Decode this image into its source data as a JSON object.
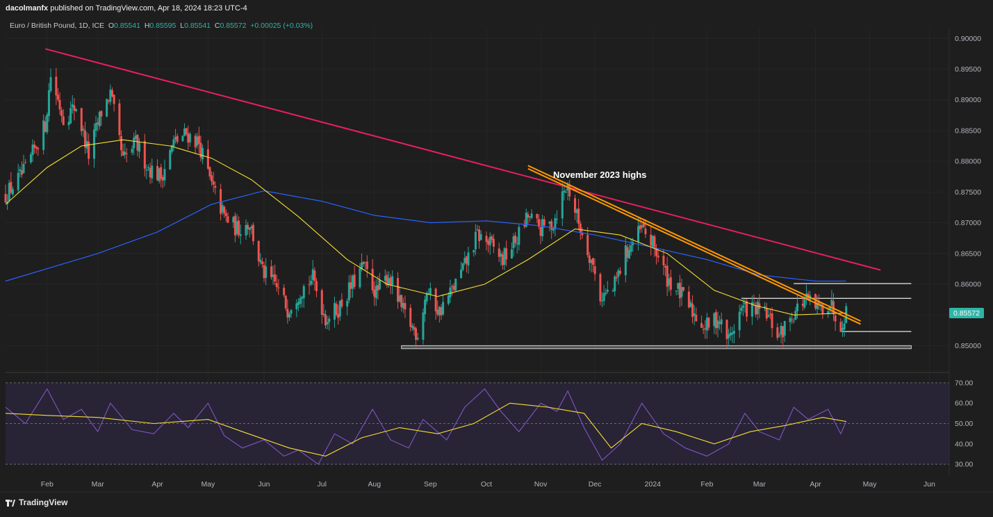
{
  "header": {
    "publisher": "dacolmanfx",
    "published_text": "published on TradingView.com, Apr 18, 2024 18:23 UTC-4"
  },
  "symbol": {
    "name": "Euro / British Pound, 1D, ICE",
    "open_label": "O",
    "open": "0.85541",
    "high_label": "H",
    "high": "0.85595",
    "low_label": "L",
    "low": "0.85541",
    "close_label": "C",
    "close": "0.85572",
    "change": "+0.00025 (+0.03%)"
  },
  "last_price_label": "0.85572",
  "annotation": "November 2023 highs",
  "footer": {
    "brand": "TradingView"
  },
  "colors": {
    "background": "#1e1e1e",
    "up_candle": "#26a69a",
    "down_candle": "#ef5350",
    "sma_fast": "#f5e132",
    "sma_slow": "#2962ff",
    "long_trendline": "#e91e63",
    "channel": "#ff9800",
    "rsi_line": "#7e57c2",
    "rsi_band": "#2a2438"
  },
  "chart_data": [
    {
      "type": "candlestick",
      "instrument": "EUR/GBP",
      "timeframe": "1D",
      "x_tick_labels": [
        "Feb",
        "Mar",
        "Apr",
        "May",
        "Jun",
        "Jul",
        "Aug",
        "Sep",
        "Oct",
        "Nov",
        "Dec",
        "2024",
        "Feb",
        "Mar",
        "Apr",
        "May",
        "Jun"
      ],
      "y_tick_labels": [
        "0.90000",
        "0.89500",
        "0.89000",
        "0.88500",
        "0.88000",
        "0.87500",
        "0.87000",
        "0.86500",
        "0.86000",
        "0.85500",
        "0.85000"
      ],
      "ylim": [
        0.8488,
        0.9015
      ],
      "last_close": 0.85572,
      "close_path": [
        {
          "date": "2023-01-09",
          "close": 0.8745
        },
        {
          "date": "2023-01-20",
          "close": 0.8785
        },
        {
          "date": "2023-01-31",
          "close": 0.886
        },
        {
          "date": "2023-02-03",
          "close": 0.894
        },
        {
          "date": "2023-02-10",
          "close": 0.887
        },
        {
          "date": "2023-02-17",
          "close": 0.889
        },
        {
          "date": "2023-02-24",
          "close": 0.881
        },
        {
          "date": "2023-03-03",
          "close": 0.888
        },
        {
          "date": "2023-03-08",
          "close": 0.891
        },
        {
          "date": "2023-03-15",
          "close": 0.88
        },
        {
          "date": "2023-03-22",
          "close": 0.883
        },
        {
          "date": "2023-03-29",
          "close": 0.879
        },
        {
          "date": "2023-04-05",
          "close": 0.8775
        },
        {
          "date": "2023-04-12",
          "close": 0.883
        },
        {
          "date": "2023-04-19",
          "close": 0.8845
        },
        {
          "date": "2023-04-26",
          "close": 0.883
        },
        {
          "date": "2023-05-03",
          "close": 0.876
        },
        {
          "date": "2023-05-10",
          "close": 0.871
        },
        {
          "date": "2023-05-17",
          "close": 0.869
        },
        {
          "date": "2023-05-24",
          "close": 0.87
        },
        {
          "date": "2023-05-31",
          "close": 0.862
        },
        {
          "date": "2023-06-07",
          "close": 0.86
        },
        {
          "date": "2023-06-14",
          "close": 0.856
        },
        {
          "date": "2023-06-21",
          "close": 0.859
        },
        {
          "date": "2023-06-28",
          "close": 0.861
        },
        {
          "date": "2023-07-05",
          "close": 0.8545
        },
        {
          "date": "2023-07-12",
          "close": 0.856
        },
        {
          "date": "2023-07-19",
          "close": 0.8595
        },
        {
          "date": "2023-07-26",
          "close": 0.863
        },
        {
          "date": "2023-08-02",
          "close": 0.8585
        },
        {
          "date": "2023-08-09",
          "close": 0.8615
        },
        {
          "date": "2023-08-16",
          "close": 0.856
        },
        {
          "date": "2023-08-23",
          "close": 0.8525
        },
        {
          "date": "2023-08-25",
          "close": 0.852
        },
        {
          "date": "2023-08-30",
          "close": 0.859
        },
        {
          "date": "2023-09-06",
          "close": 0.8555
        },
        {
          "date": "2023-09-13",
          "close": 0.859
        },
        {
          "date": "2023-09-20",
          "close": 0.863
        },
        {
          "date": "2023-09-27",
          "close": 0.868
        },
        {
          "date": "2023-10-04",
          "close": 0.8665
        },
        {
          "date": "2023-10-11",
          "close": 0.864
        },
        {
          "date": "2023-10-18",
          "close": 0.867
        },
        {
          "date": "2023-10-25",
          "close": 0.871
        },
        {
          "date": "2023-11-01",
          "close": 0.869
        },
        {
          "date": "2023-11-08",
          "close": 0.87
        },
        {
          "date": "2023-11-13",
          "close": 0.8745
        },
        {
          "date": "2023-11-16",
          "close": 0.876
        },
        {
          "date": "2023-11-22",
          "close": 0.87
        },
        {
          "date": "2023-11-29",
          "close": 0.864
        },
        {
          "date": "2023-12-04",
          "close": 0.858
        },
        {
          "date": "2023-12-11",
          "close": 0.859
        },
        {
          "date": "2023-12-18",
          "close": 0.865
        },
        {
          "date": "2023-12-27",
          "close": 0.869
        },
        {
          "date": "2024-01-03",
          "close": 0.866
        },
        {
          "date": "2024-01-10",
          "close": 0.861
        },
        {
          "date": "2024-01-17",
          "close": 0.8585
        },
        {
          "date": "2024-01-24",
          "close": 0.8555
        },
        {
          "date": "2024-01-31",
          "close": 0.853
        },
        {
          "date": "2024-02-07",
          "close": 0.8545
        },
        {
          "date": "2024-02-13",
          "close": 0.851
        },
        {
          "date": "2024-02-20",
          "close": 0.856
        },
        {
          "date": "2024-02-27",
          "close": 0.856
        },
        {
          "date": "2024-03-05",
          "close": 0.855
        },
        {
          "date": "2024-03-12",
          "close": 0.8515
        },
        {
          "date": "2024-03-19",
          "close": 0.855
        },
        {
          "date": "2024-03-26",
          "close": 0.8575
        },
        {
          "date": "2024-04-02",
          "close": 0.856
        },
        {
          "date": "2024-04-09",
          "close": 0.857
        },
        {
          "date": "2024-04-15",
          "close": 0.8535
        },
        {
          "date": "2024-04-18",
          "close": 0.8557
        }
      ],
      "horizontal_levels": [
        0.8601,
        0.8577,
        0.8523,
        0.85,
        0.8495
      ],
      "series": [
        {
          "role": "long-term descending trendline",
          "from": {
            "date": "2023-01-31",
            "value": 0.8983
          },
          "to": {
            "date": "2024-05-07",
            "value": 0.8623
          }
        },
        {
          "role": "descending channel upper line",
          "from": {
            "date": "2023-10-25",
            "value": 0.8793
          },
          "to": {
            "date": "2024-04-26",
            "value": 0.854
          }
        },
        {
          "role": "descending channel lower line",
          "from": {
            "date": "2023-10-25",
            "value": 0.8788
          },
          "to": {
            "date": "2024-04-26",
            "value": 0.8535
          }
        },
        {
          "role": "200-day moving average",
          "points": [
            [
              "2023-01-09",
              0.8605
            ],
            [
              "2023-03-01",
              0.865
            ],
            [
              "2023-04-03",
              0.8685
            ],
            [
              "2023-05-03",
              0.873
            ],
            [
              "2023-06-01",
              0.8752
            ],
            [
              "2023-07-03",
              0.8735
            ],
            [
              "2023-08-01",
              0.8712
            ],
            [
              "2023-09-01",
              0.87
            ],
            [
              "2023-10-02",
              0.8703
            ],
            [
              "2023-11-01",
              0.8695
            ],
            [
              "2023-12-01",
              0.868
            ],
            [
              "2024-01-02",
              0.866
            ],
            [
              "2024-02-01",
              0.864
            ],
            [
              "2024-03-01",
              0.8615
            ],
            [
              "2024-04-01",
              0.8605
            ],
            [
              "2024-04-18",
              0.8605
            ]
          ]
        },
        {
          "role": "50-day moving average",
          "points": [
            [
              "2023-01-09",
              0.873
            ],
            [
              "2023-02-01",
              0.879
            ],
            [
              "2023-02-20",
              0.8825
            ],
            [
              "2023-03-15",
              0.8835
            ],
            [
              "2023-04-10",
              0.8825
            ],
            [
              "2023-05-03",
              0.8805
            ],
            [
              "2023-05-25",
              0.877
            ],
            [
              "2023-06-20",
              0.871
            ],
            [
              "2023-07-17",
              0.864
            ],
            [
              "2023-08-08",
              0.86
            ],
            [
              "2023-09-05",
              0.858
            ],
            [
              "2023-10-01",
              0.86
            ],
            [
              "2023-10-25",
              0.864
            ],
            [
              "2023-11-20",
              0.869
            ],
            [
              "2023-12-15",
              0.868
            ],
            [
              "2024-01-10",
              0.865
            ],
            [
              "2024-02-05",
              0.859
            ],
            [
              "2024-02-28",
              0.8565
            ],
            [
              "2024-03-20",
              0.855
            ],
            [
              "2024-04-18",
              0.8553
            ]
          ]
        }
      ]
    },
    {
      "type": "line",
      "indicator": "RSI",
      "y_tick_labels": [
        "70.00",
        "60.00",
        "50.00",
        "40.00",
        "30.00"
      ],
      "ylim": [
        28,
        72
      ],
      "bands": [
        30,
        50,
        70
      ],
      "series": [
        {
          "role": "rsi",
          "points": [
            [
              "2023-01-09",
              58
            ],
            [
              "2023-01-20",
              50
            ],
            [
              "2023-02-01",
              67
            ],
            [
              "2023-02-10",
              52
            ],
            [
              "2023-02-20",
              57
            ],
            [
              "2023-03-01",
              46
            ],
            [
              "2023-03-08",
              60
            ],
            [
              "2023-03-20",
              47
            ],
            [
              "2023-04-01",
              45
            ],
            [
              "2023-04-12",
              55
            ],
            [
              "2023-04-20",
              48
            ],
            [
              "2023-05-01",
              60
            ],
            [
              "2023-05-10",
              44
            ],
            [
              "2023-05-20",
              38
            ],
            [
              "2023-06-01",
              42
            ],
            [
              "2023-06-12",
              34
            ],
            [
              "2023-06-20",
              37
            ],
            [
              "2023-07-01",
              30
            ],
            [
              "2023-07-10",
              45
            ],
            [
              "2023-07-20",
              40
            ],
            [
              "2023-07-31",
              57
            ],
            [
              "2023-08-10",
              42
            ],
            [
              "2023-08-20",
              38
            ],
            [
              "2023-08-28",
              52
            ],
            [
              "2023-09-10",
              42
            ],
            [
              "2023-09-20",
              58
            ],
            [
              "2023-10-01",
              67
            ],
            [
              "2023-10-10",
              56
            ],
            [
              "2023-10-20",
              46
            ],
            [
              "2023-11-01",
              60
            ],
            [
              "2023-11-10",
              56
            ],
            [
              "2023-11-16",
              66
            ],
            [
              "2023-11-25",
              48
            ],
            [
              "2023-12-05",
              32
            ],
            [
              "2023-12-15",
              40
            ],
            [
              "2023-12-27",
              60
            ],
            [
              "2024-01-08",
              45
            ],
            [
              "2024-01-20",
              38
            ],
            [
              "2024-02-01",
              34
            ],
            [
              "2024-02-13",
              40
            ],
            [
              "2024-02-22",
              55
            ],
            [
              "2024-03-01",
              46
            ],
            [
              "2024-03-12",
              42
            ],
            [
              "2024-03-20",
              58
            ],
            [
              "2024-03-28",
              52
            ],
            [
              "2024-04-08",
              57
            ],
            [
              "2024-04-15",
              45
            ],
            [
              "2024-04-18",
              51
            ]
          ]
        },
        {
          "role": "rsi moving average",
          "points": [
            [
              "2023-01-09",
              55
            ],
            [
              "2023-02-01",
              54
            ],
            [
              "2023-03-01",
              53
            ],
            [
              "2023-04-01",
              50
            ],
            [
              "2023-05-01",
              52
            ],
            [
              "2023-05-20",
              46
            ],
            [
              "2023-06-15",
              38
            ],
            [
              "2023-07-05",
              34
            ],
            [
              "2023-07-25",
              43
            ],
            [
              "2023-08-15",
              48
            ],
            [
              "2023-09-05",
              45
            ],
            [
              "2023-09-25",
              50
            ],
            [
              "2023-10-15",
              60
            ],
            [
              "2023-11-05",
              58
            ],
            [
              "2023-11-25",
              55
            ],
            [
              "2023-12-10",
              38
            ],
            [
              "2023-12-27",
              50
            ],
            [
              "2024-01-15",
              46
            ],
            [
              "2024-02-05",
              40
            ],
            [
              "2024-02-25",
              46
            ],
            [
              "2024-03-15",
              49
            ],
            [
              "2024-04-05",
              53
            ],
            [
              "2024-04-18",
              51
            ]
          ]
        }
      ]
    }
  ]
}
